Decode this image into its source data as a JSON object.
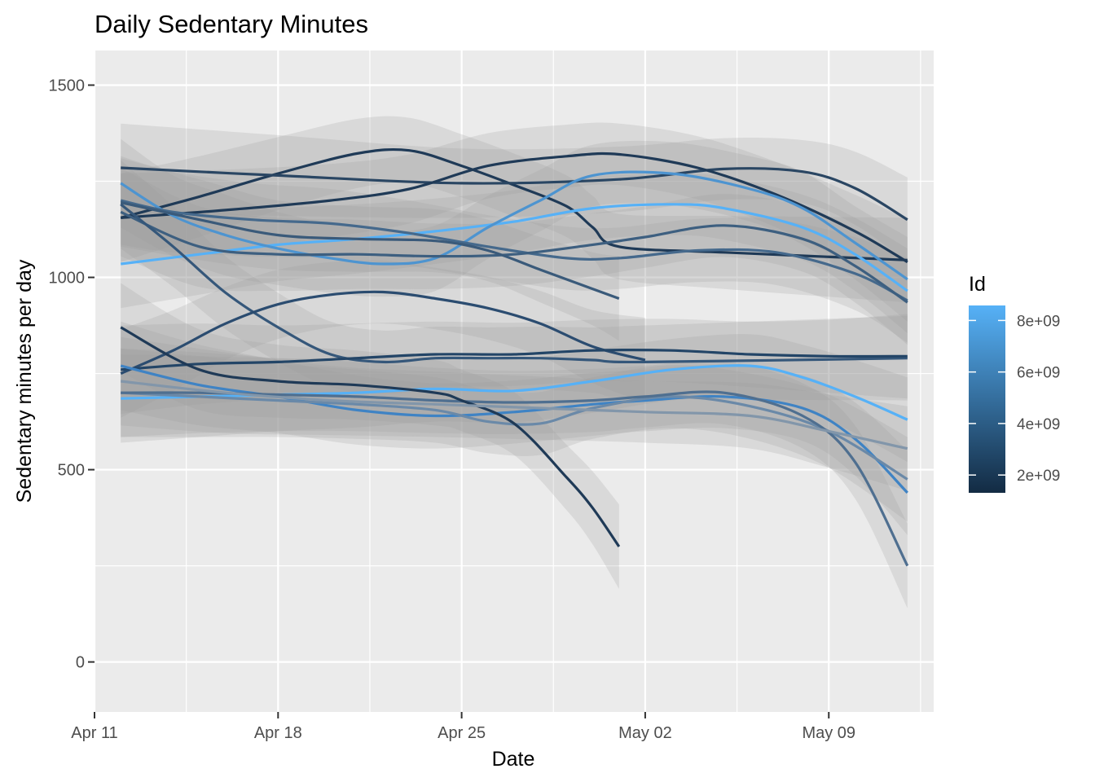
{
  "chart_data": {
    "type": "line",
    "title": "Daily Sedentary Minutes",
    "xlabel": "Date",
    "ylabel": "Sedentary minutes per day",
    "x_ticks": [
      {
        "label": "Apr 11",
        "date": "2016-04-11"
      },
      {
        "label": "Apr 18",
        "date": "2016-04-18"
      },
      {
        "label": "Apr 25",
        "date": "2016-04-25"
      },
      {
        "label": "May 02",
        "date": "2016-05-02"
      },
      {
        "label": "May 09",
        "date": "2016-05-09"
      }
    ],
    "xlim": [
      "2016-04-11",
      "2016-05-13"
    ],
    "y_ticks": [
      0,
      500,
      1000,
      1500
    ],
    "ylim": [
      -130,
      1590
    ],
    "grid": true,
    "legend": {
      "title": "Id",
      "position": "right",
      "type": "continuous",
      "ticks": [
        "2e+09",
        "4e+09",
        "6e+09",
        "8e+09"
      ],
      "colors": [
        "#132B43",
        "#56B1F7"
      ]
    },
    "band_color": "#999999",
    "series": [
      {
        "color": "#1f3a57",
        "points": [
          [
            "2016-04-12",
            1155
          ],
          [
            "2016-04-15",
            1210
          ],
          [
            "2016-04-18",
            1270
          ],
          [
            "2016-04-21",
            1322
          ],
          [
            "2016-04-23",
            1330
          ],
          [
            "2016-04-25",
            1290
          ],
          [
            "2016-04-27",
            1240
          ],
          [
            "2016-04-29",
            1185
          ],
          [
            "2016-04-30",
            1130
          ],
          [
            "2016-05-01",
            1080
          ],
          [
            "2016-05-05",
            1065
          ],
          [
            "2016-05-12",
            1045
          ]
        ]
      },
      {
        "color": "#2a4663",
        "points": [
          [
            "2016-04-12",
            1285
          ],
          [
            "2016-04-18",
            1265
          ],
          [
            "2016-04-25",
            1245
          ],
          [
            "2016-05-01",
            1255
          ],
          [
            "2016-05-05",
            1282
          ],
          [
            "2016-05-08",
            1275
          ],
          [
            "2016-05-10",
            1232
          ],
          [
            "2016-05-12",
            1150
          ]
        ]
      },
      {
        "color": "#1f3a57",
        "points": [
          [
            "2016-04-12",
            1155
          ],
          [
            "2016-04-16",
            1175
          ],
          [
            "2016-04-20",
            1200
          ],
          [
            "2016-04-23",
            1230
          ],
          [
            "2016-04-26",
            1290
          ],
          [
            "2016-04-29",
            1315
          ],
          [
            "2016-05-01",
            1320
          ],
          [
            "2016-05-04",
            1285
          ],
          [
            "2016-05-07",
            1215
          ],
          [
            "2016-05-10",
            1120
          ],
          [
            "2016-05-12",
            1040
          ]
        ]
      },
      {
        "color": "#56B1F7",
        "points": [
          [
            "2016-04-12",
            1035
          ],
          [
            "2016-04-15",
            1060
          ],
          [
            "2016-04-18",
            1085
          ],
          [
            "2016-04-21",
            1100
          ],
          [
            "2016-04-24",
            1120
          ],
          [
            "2016-04-27",
            1145
          ],
          [
            "2016-04-30",
            1180
          ],
          [
            "2016-05-03",
            1190
          ],
          [
            "2016-05-05",
            1180
          ],
          [
            "2016-05-08",
            1130
          ],
          [
            "2016-05-10",
            1060
          ],
          [
            "2016-05-12",
            965
          ]
        ]
      },
      {
        "color": "#4d94d0",
        "points": [
          [
            "2016-04-12",
            1245
          ],
          [
            "2016-04-14",
            1160
          ],
          [
            "2016-04-16",
            1110
          ],
          [
            "2016-04-18",
            1075
          ],
          [
            "2016-04-20",
            1050
          ],
          [
            "2016-04-22",
            1035
          ],
          [
            "2016-04-24",
            1050
          ],
          [
            "2016-04-26",
            1130
          ],
          [
            "2016-04-28",
            1200
          ],
          [
            "2016-04-30",
            1265
          ],
          [
            "2016-05-03",
            1270
          ],
          [
            "2016-05-06",
            1230
          ],
          [
            "2016-05-08",
            1180
          ],
          [
            "2016-05-10",
            1090
          ],
          [
            "2016-05-12",
            995
          ]
        ]
      },
      {
        "color": "#45698c",
        "points": [
          [
            "2016-04-12",
            1200
          ],
          [
            "2016-04-14",
            1170
          ],
          [
            "2016-04-17",
            1150
          ],
          [
            "2016-04-20",
            1140
          ],
          [
            "2016-04-23",
            1115
          ],
          [
            "2016-04-26",
            1080
          ],
          [
            "2016-04-29",
            1050
          ],
          [
            "2016-05-01",
            1050
          ],
          [
            "2016-05-04",
            1070
          ],
          [
            "2016-05-07",
            1065
          ],
          [
            "2016-05-10",
            1010
          ],
          [
            "2016-05-12",
            940
          ]
        ]
      },
      {
        "color": "#3d5f80",
        "points": [
          [
            "2016-04-12",
            1170
          ],
          [
            "2016-04-15",
            1080
          ],
          [
            "2016-04-18",
            1060
          ],
          [
            "2016-04-21",
            1060
          ],
          [
            "2016-04-24",
            1055
          ],
          [
            "2016-04-27",
            1060
          ],
          [
            "2016-04-30",
            1085
          ],
          [
            "2016-05-02",
            1105
          ],
          [
            "2016-05-05",
            1135
          ],
          [
            "2016-05-08",
            1100
          ],
          [
            "2016-05-10",
            1030
          ],
          [
            "2016-05-12",
            935
          ]
        ]
      },
      {
        "color": "#3a5a7a",
        "points": [
          [
            "2016-04-12",
            1195
          ],
          [
            "2016-04-15",
            1150
          ],
          [
            "2016-04-18",
            1110
          ],
          [
            "2016-04-21",
            1100
          ],
          [
            "2016-04-24",
            1095
          ],
          [
            "2016-04-26",
            1070
          ],
          [
            "2016-04-28",
            1020
          ],
          [
            "2016-04-30",
            970
          ],
          [
            "2016-05-01",
            945
          ]
        ]
      },
      {
        "color": "#35577a",
        "points": [
          [
            "2016-04-12",
            1190
          ],
          [
            "2016-04-14",
            1080
          ],
          [
            "2016-04-16",
            960
          ],
          [
            "2016-04-18",
            870
          ],
          [
            "2016-04-20",
            800
          ],
          [
            "2016-04-22",
            780
          ],
          [
            "2016-04-24",
            790
          ],
          [
            "2016-04-26",
            790
          ],
          [
            "2016-04-28",
            790
          ],
          [
            "2016-04-30",
            785
          ],
          [
            "2016-05-02",
            780
          ],
          [
            "2016-05-12",
            790
          ]
        ]
      },
      {
        "color": "#2b4c70",
        "points": [
          [
            "2016-04-12",
            750
          ],
          [
            "2016-04-14",
            810
          ],
          [
            "2016-04-16",
            880
          ],
          [
            "2016-04-18",
            930
          ],
          [
            "2016-04-20",
            955
          ],
          [
            "2016-04-22",
            962
          ],
          [
            "2016-04-24",
            945
          ],
          [
            "2016-04-26",
            920
          ],
          [
            "2016-04-28",
            880
          ],
          [
            "2016-04-30",
            820
          ],
          [
            "2016-05-02",
            785
          ]
        ]
      },
      {
        "color": "#234567",
        "points": [
          [
            "2016-04-12",
            760
          ],
          [
            "2016-04-15",
            775
          ],
          [
            "2016-04-18",
            780
          ],
          [
            "2016-04-21",
            790
          ],
          [
            "2016-04-24",
            800
          ],
          [
            "2016-04-27",
            800
          ],
          [
            "2016-04-30",
            810
          ],
          [
            "2016-05-03",
            810
          ],
          [
            "2016-05-06",
            800
          ],
          [
            "2016-05-09",
            795
          ],
          [
            "2016-05-12",
            795
          ]
        ]
      },
      {
        "color": "#56B1F7",
        "points": [
          [
            "2016-04-12",
            685
          ],
          [
            "2016-04-15",
            690
          ],
          [
            "2016-04-18",
            695
          ],
          [
            "2016-04-21",
            700
          ],
          [
            "2016-04-24",
            710
          ],
          [
            "2016-04-27",
            705
          ],
          [
            "2016-04-30",
            730
          ],
          [
            "2016-05-03",
            760
          ],
          [
            "2016-05-06",
            770
          ],
          [
            "2016-05-08",
            740
          ],
          [
            "2016-05-10",
            690
          ],
          [
            "2016-05-12",
            630
          ]
        ]
      },
      {
        "color": "#3f83c4",
        "points": [
          [
            "2016-04-12",
            770
          ],
          [
            "2016-04-15",
            720
          ],
          [
            "2016-04-18",
            690
          ],
          [
            "2016-04-21",
            655
          ],
          [
            "2016-04-24",
            640
          ],
          [
            "2016-04-27",
            650
          ],
          [
            "2016-04-30",
            670
          ],
          [
            "2016-05-02",
            680
          ],
          [
            "2016-05-05",
            690
          ],
          [
            "2016-05-08",
            660
          ],
          [
            "2016-05-10",
            580
          ],
          [
            "2016-05-12",
            440
          ]
        ]
      },
      {
        "color": "#6a89a8",
        "points": [
          [
            "2016-04-12",
            700
          ],
          [
            "2016-04-15",
            690
          ],
          [
            "2016-04-18",
            680
          ],
          [
            "2016-04-21",
            670
          ],
          [
            "2016-04-24",
            655
          ],
          [
            "2016-04-26",
            625
          ],
          [
            "2016-04-28",
            620
          ],
          [
            "2016-04-30",
            660
          ],
          [
            "2016-05-03",
            690
          ],
          [
            "2016-05-06",
            665
          ],
          [
            "2016-05-09",
            600
          ],
          [
            "2016-05-12",
            475
          ]
        ]
      },
      {
        "color": "#4f6f90",
        "points": [
          [
            "2016-04-12",
            700
          ],
          [
            "2016-04-15",
            700
          ],
          [
            "2016-04-18",
            695
          ],
          [
            "2016-04-21",
            690
          ],
          [
            "2016-04-24",
            680
          ],
          [
            "2016-04-27",
            675
          ],
          [
            "2016-04-30",
            680
          ],
          [
            "2016-05-02",
            690
          ],
          [
            "2016-05-05",
            700
          ],
          [
            "2016-05-08",
            640
          ],
          [
            "2016-05-10",
            520
          ],
          [
            "2016-05-12",
            250
          ]
        ]
      },
      {
        "color": "#1f3a57",
        "points": [
          [
            "2016-04-12",
            870
          ],
          [
            "2016-04-15",
            760
          ],
          [
            "2016-04-18",
            730
          ],
          [
            "2016-04-21",
            720
          ],
          [
            "2016-04-24",
            700
          ],
          [
            "2016-04-25",
            680
          ],
          [
            "2016-04-27",
            620
          ],
          [
            "2016-04-29",
            480
          ],
          [
            "2016-04-30",
            400
          ],
          [
            "2016-05-01",
            300
          ]
        ]
      },
      {
        "color": "#8296aa",
        "points": [
          [
            "2016-04-12",
            730
          ],
          [
            "2016-04-16",
            700
          ],
          [
            "2016-04-20",
            680
          ],
          [
            "2016-04-24",
            670
          ],
          [
            "2016-04-28",
            660
          ],
          [
            "2016-05-02",
            650
          ],
          [
            "2016-05-06",
            640
          ],
          [
            "2016-05-09",
            600
          ],
          [
            "2016-05-12",
            555
          ]
        ]
      }
    ]
  }
}
